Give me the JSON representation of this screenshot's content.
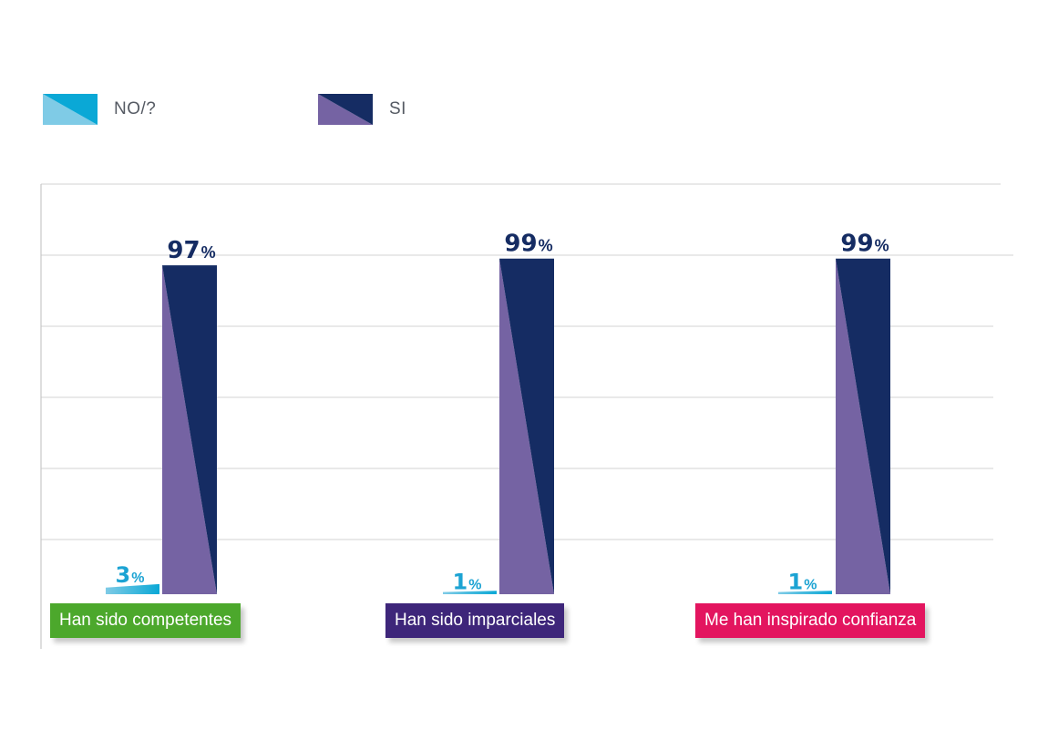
{
  "legend": [
    {
      "label": "NO/?",
      "color_light": "#7fcbe6",
      "color_dark": "#0aa8d6"
    },
    {
      "label": "SI",
      "color_light": "#7563a3",
      "color_dark": "#152c63"
    }
  ],
  "colors": {
    "value_no": "#1ca3d3",
    "value_si": "#152c63",
    "grid": "#dcdcdc",
    "axis": "#c8c8c8"
  },
  "chart_data": {
    "type": "bar",
    "categories": [
      "Han sido competentes",
      "Han sido imparciales",
      "Me han inspirado confianza"
    ],
    "category_colors": [
      "#4ca82c",
      "#3e267a",
      "#e3155f"
    ],
    "series": [
      {
        "name": "NO/?",
        "values": [
          3,
          1,
          1
        ],
        "value_labels": [
          "3",
          "1",
          "1"
        ]
      },
      {
        "name": "SI",
        "values": [
          97,
          99,
          99
        ],
        "value_labels": [
          "97",
          "99",
          "99"
        ]
      }
    ],
    "value_suffix": "%",
    "ylim": [
      0,
      100
    ],
    "grid": true,
    "legend_position": "top-left"
  }
}
